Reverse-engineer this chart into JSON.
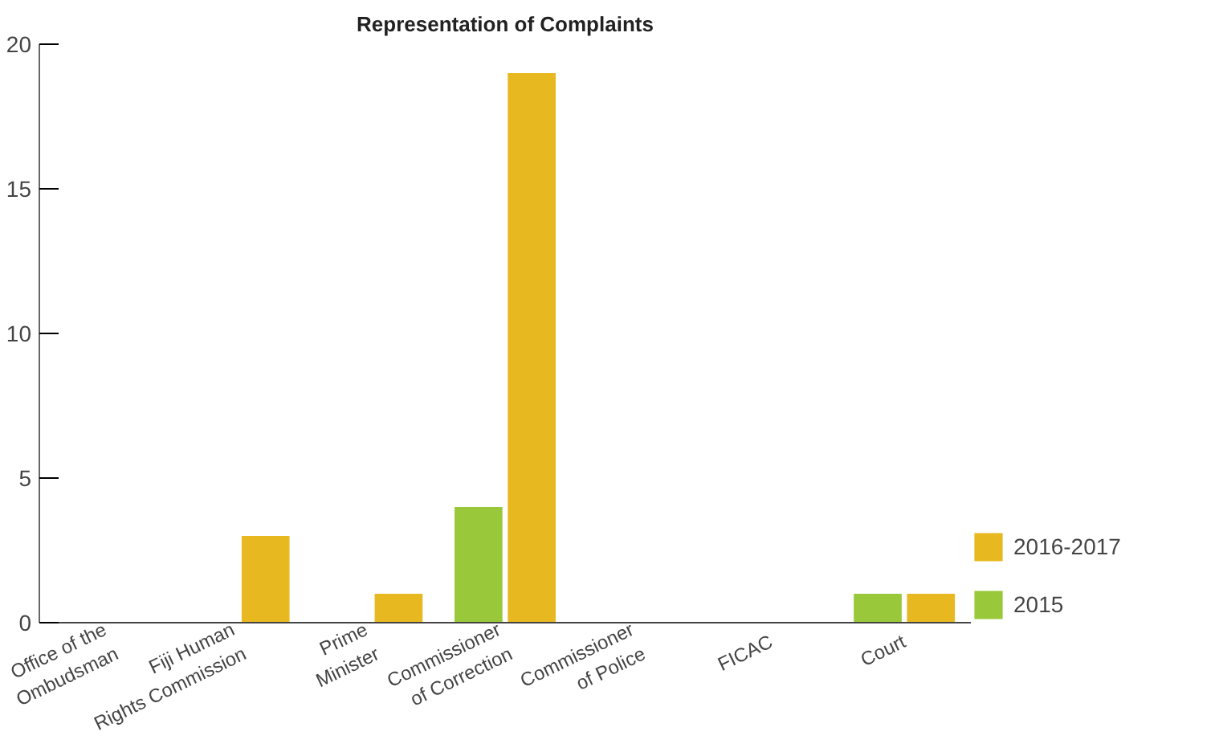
{
  "chart_data": {
    "type": "bar",
    "title": "Representation of Complaints",
    "categories": [
      "Office of the\nOmbudsman",
      "Fiji Human\nRights Commission",
      "Prime\nMinister",
      "Commissioner\nof Correction",
      "Commissioner\nof Police",
      "FICAC",
      "Court"
    ],
    "series": [
      {
        "name": "2015",
        "color": "#99c93a",
        "values": [
          0,
          0,
          0,
          4,
          0,
          0,
          1
        ]
      },
      {
        "name": "2016-2017",
        "color": "#e8b820",
        "values": [
          0,
          3,
          1,
          19,
          0,
          0,
          1
        ]
      }
    ],
    "ylim": [
      0,
      20
    ],
    "yticks": [
      0,
      5,
      10,
      15,
      20
    ],
    "grid": false,
    "legend": "bottom right"
  }
}
